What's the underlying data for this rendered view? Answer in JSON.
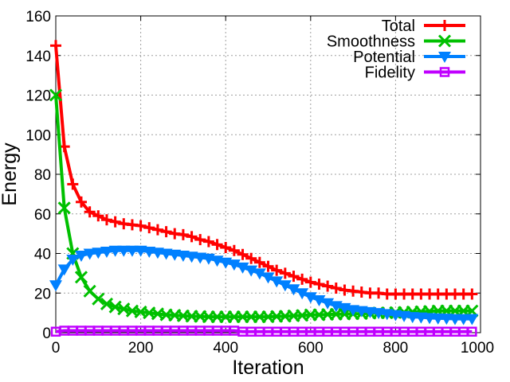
{
  "chart_data": {
    "type": "line",
    "title": "",
    "xlabel": "Iteration",
    "ylabel": "Energy",
    "xlim": [
      0,
      1000
    ],
    "ylim": [
      0,
      160
    ],
    "xticks": [
      0,
      200,
      400,
      600,
      800,
      1000
    ],
    "yticks": [
      0,
      20,
      40,
      60,
      80,
      100,
      120,
      140,
      160
    ],
    "grid": true,
    "legend_position": "top-right",
    "x": [
      0,
      20,
      40,
      60,
      80,
      100,
      120,
      140,
      160,
      180,
      200,
      220,
      240,
      260,
      280,
      300,
      320,
      340,
      360,
      380,
      400,
      420,
      440,
      460,
      480,
      500,
      520,
      540,
      560,
      580,
      600,
      620,
      640,
      660,
      680,
      700,
      720,
      740,
      760,
      780,
      800,
      820,
      840,
      860,
      880,
      900,
      920,
      940,
      960,
      980
    ],
    "series": [
      {
        "name": "Total",
        "color": "#ff0000",
        "marker": "plus",
        "values": [
          145,
          94,
          75,
          66,
          61,
          59,
          57,
          56,
          55,
          54.5,
          54,
          53,
          52,
          51,
          50,
          49.5,
          48.5,
          47,
          46,
          44.5,
          43,
          41.5,
          39.5,
          37.5,
          35.5,
          33.5,
          31.5,
          30,
          28.5,
          27,
          25.5,
          24.5,
          23.5,
          22.5,
          21.5,
          21,
          20.5,
          20,
          20,
          19.5,
          19.5,
          19.5,
          19.5,
          19.5,
          19.5,
          19.5,
          19.5,
          19.5,
          19.5,
          19.5
        ]
      },
      {
        "name": "Smoothness",
        "color": "#00c000",
        "marker": "x",
        "values": [
          120,
          63,
          40,
          28,
          21,
          17,
          14.5,
          13,
          12,
          11,
          10.5,
          10,
          9.5,
          9,
          8.8,
          8.5,
          8.3,
          8.2,
          8,
          8,
          8,
          8,
          8,
          8,
          8,
          8,
          8.2,
          8.3,
          8.5,
          8.7,
          9,
          9,
          9.2,
          9.3,
          9.4,
          9.5,
          9.6,
          9.8,
          10,
          10,
          10.2,
          10.3,
          10.5,
          10.6,
          10.8,
          11,
          11,
          11,
          11,
          11
        ]
      },
      {
        "name": "Potential",
        "color": "#0080ff",
        "marker": "triangle-down",
        "values": [
          24,
          32,
          37,
          39,
          40,
          40.5,
          41,
          41.5,
          41.5,
          41.5,
          41.5,
          41,
          40.5,
          40,
          39.5,
          39,
          38.5,
          38,
          37.5,
          36.5,
          35.5,
          34.5,
          33,
          31.5,
          30,
          28,
          26,
          24,
          22,
          20,
          18,
          16.5,
          15,
          13.5,
          12.5,
          11.5,
          11,
          10.5,
          10,
          9.5,
          9,
          8.5,
          8,
          7.8,
          7.5,
          7.3,
          7.2,
          7,
          7,
          7
        ]
      },
      {
        "name": "Fidelity",
        "color": "#c000ff",
        "marker": "square",
        "values": [
          0.5,
          1,
          1,
          1,
          1,
          1,
          1,
          1,
          1,
          1,
          1,
          1,
          1,
          1,
          1,
          1,
          1,
          1,
          1,
          1,
          1,
          1,
          0.5,
          0.5,
          0.5,
          0.5,
          0.5,
          0.5,
          0.5,
          0.5,
          0.5,
          0.5,
          0.5,
          0.5,
          0.5,
          0.5,
          0.5,
          0.5,
          0.5,
          0.5,
          0.5,
          0.5,
          0.5,
          0.5,
          0.5,
          0.5,
          0.5,
          0.5,
          0.5,
          0.5
        ]
      }
    ]
  }
}
